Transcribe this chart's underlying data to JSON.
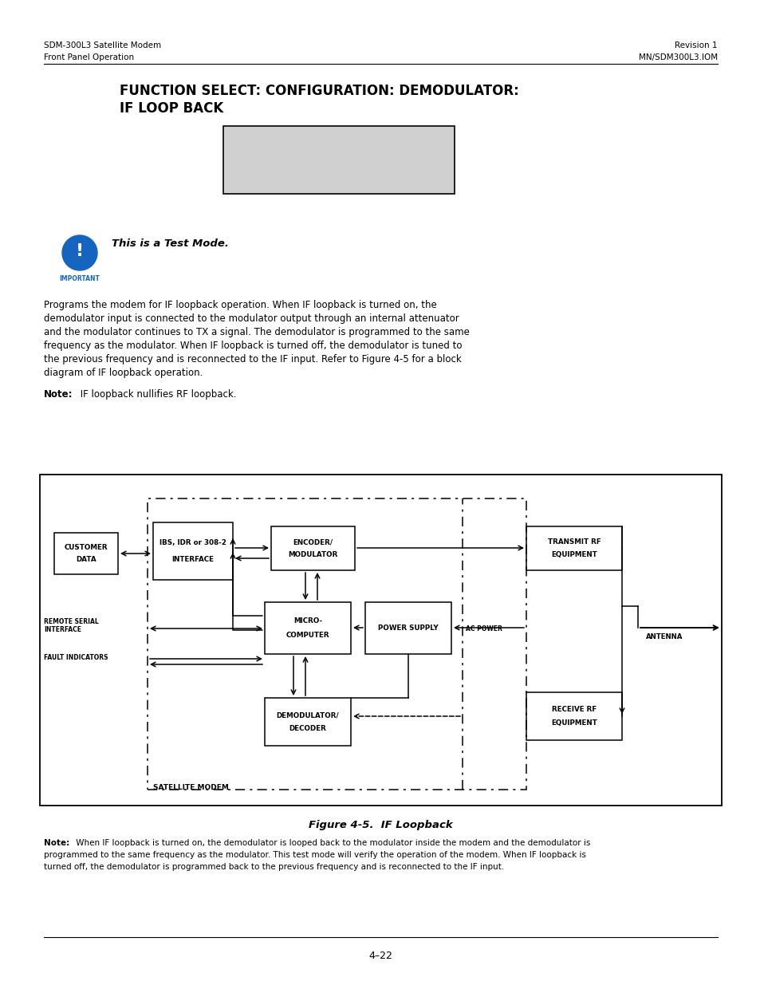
{
  "page_header_left1": "SDM-300L3 Satellite Modem",
  "page_header_left2": "Front Panel Operation",
  "page_header_right1": "Revision 1",
  "page_header_right2": "MN/SDM300L3.IOM",
  "title_line1": "FUNCTION SELECT: CONFIGURATION: DEMODULATOR:",
  "title_line2": "IF LOOP BACK",
  "important_text": "This is a Test Mode.",
  "body_lines": [
    "Programs the modem for IF loopback operation. When IF loopback is turned on, the",
    "demodulator input is connected to the modulator output through an internal attenuator",
    "and the modulator continues to TX a signal. The demodulator is programmed to the same",
    "frequency as the modulator. When IF loopback is turned off, the demodulator is tuned to",
    "the previous frequency and is reconnected to the IF input. Refer to Figure 4-5 for a block",
    "diagram of IF loopback operation."
  ],
  "note_bold": "Note:",
  "note_rest": " IF loopback nullifies RF loopback.",
  "figure_caption": "Figure 4-5.  IF Loopback",
  "fig_note_bold": "Note:",
  "fig_note_line1": " When IF loopback is turned on, the demodulator is looped back to the modulator inside the modem and the demodulator is",
  "fig_note_line2": "programmed to the same frequency as the modulator. This test mode will verify the operation of the modem. When IF loopback is",
  "fig_note_line3": "turned off, the demodulator is programmed back to the previous frequency and is reconnected to the IF input.",
  "page_number": "4–22",
  "bg_color": "#ffffff",
  "text_color": "#000000",
  "blue_color": "#1565c0",
  "lcd_box_color": "#d0d0d0"
}
